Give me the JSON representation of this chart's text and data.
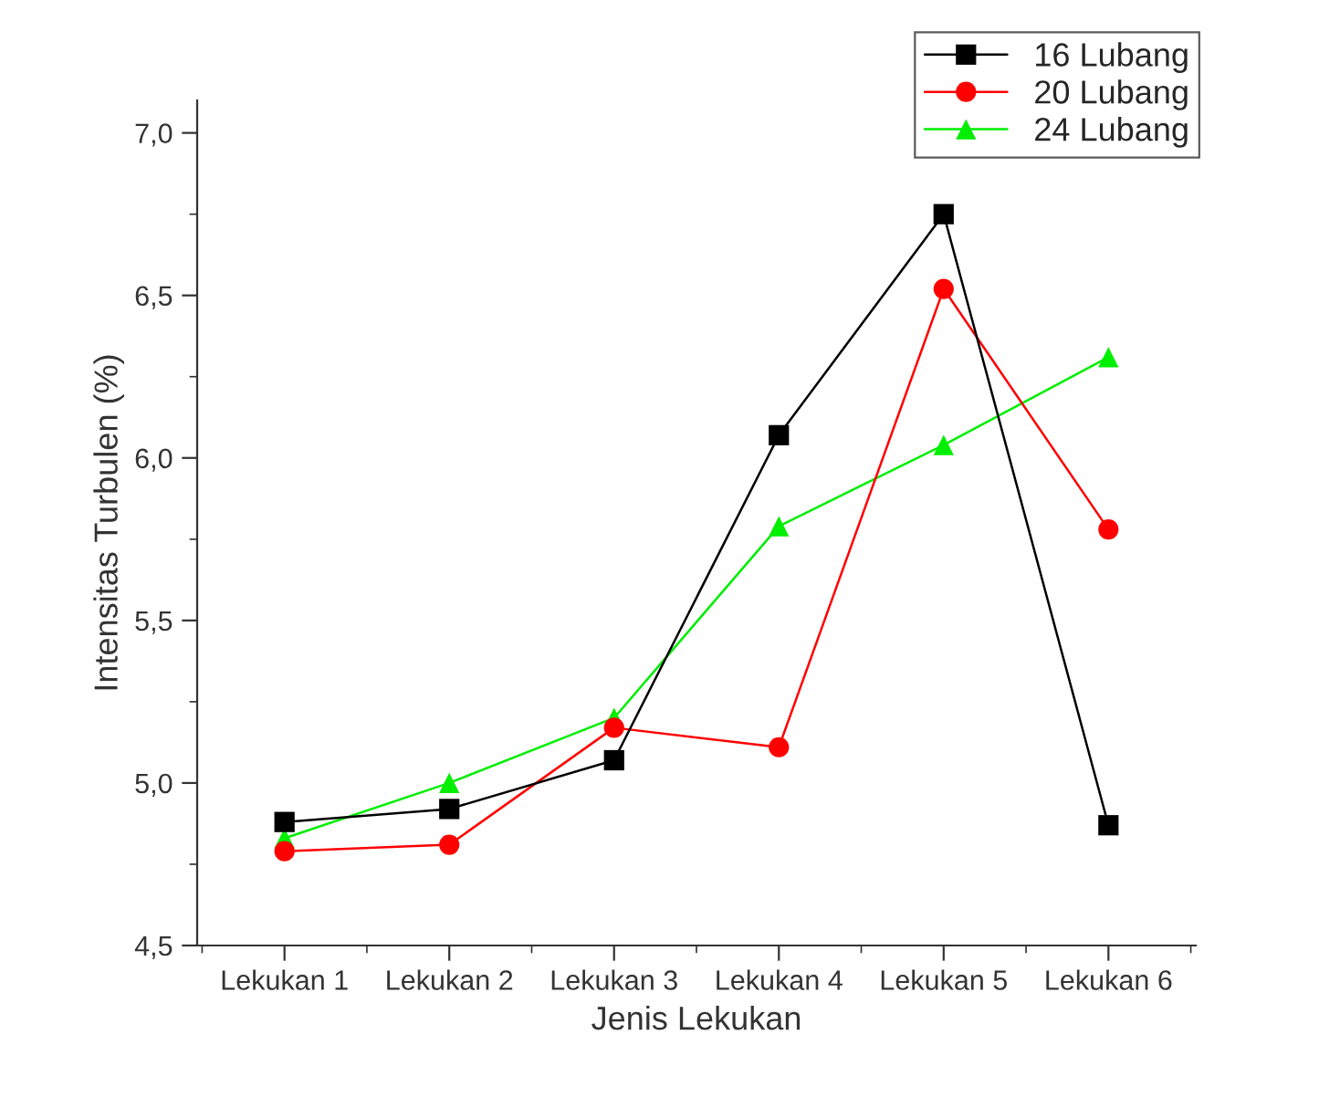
{
  "chart_data": {
    "type": "line",
    "xlabel": "Jenis Lekukan",
    "ylabel": "Intensitas Turbulen (%)",
    "categories": [
      "Lekukan 1",
      "Lekukan 2",
      "Lekukan 3",
      "Lekukan 4",
      "Lekukan 5",
      "Lekukan 6"
    ],
    "series": [
      {
        "name": "16 Lubang",
        "color": "#000000",
        "marker": "square",
        "values": [
          4.88,
          4.92,
          5.07,
          6.07,
          6.75,
          4.87
        ]
      },
      {
        "name": "20 Lubang",
        "color": "#ff0000",
        "marker": "circle",
        "values": [
          4.79,
          4.81,
          5.17,
          5.11,
          6.52,
          5.78
        ]
      },
      {
        "name": "24 Lubang",
        "color": "#00ee00",
        "marker": "triangle",
        "values": [
          4.83,
          5.0,
          5.2,
          5.79,
          6.04,
          6.31
        ]
      }
    ],
    "ylim": [
      4.5,
      7.1
    ],
    "yticks": [
      {
        "value": 4.5,
        "label": "4,5"
      },
      {
        "value": 4.75,
        "label": null
      },
      {
        "value": 5.0,
        "label": "5,0"
      },
      {
        "value": 5.25,
        "label": null
      },
      {
        "value": 5.5,
        "label": "5,5"
      },
      {
        "value": 5.75,
        "label": null
      },
      {
        "value": 6.0,
        "label": "6,0"
      },
      {
        "value": 6.25,
        "label": null
      },
      {
        "value": 6.5,
        "label": "6,5"
      },
      {
        "value": 6.75,
        "label": null
      },
      {
        "value": 7.0,
        "label": "7,0"
      }
    ],
    "grid": false,
    "legend": "top right",
    "line_style": "solid"
  }
}
